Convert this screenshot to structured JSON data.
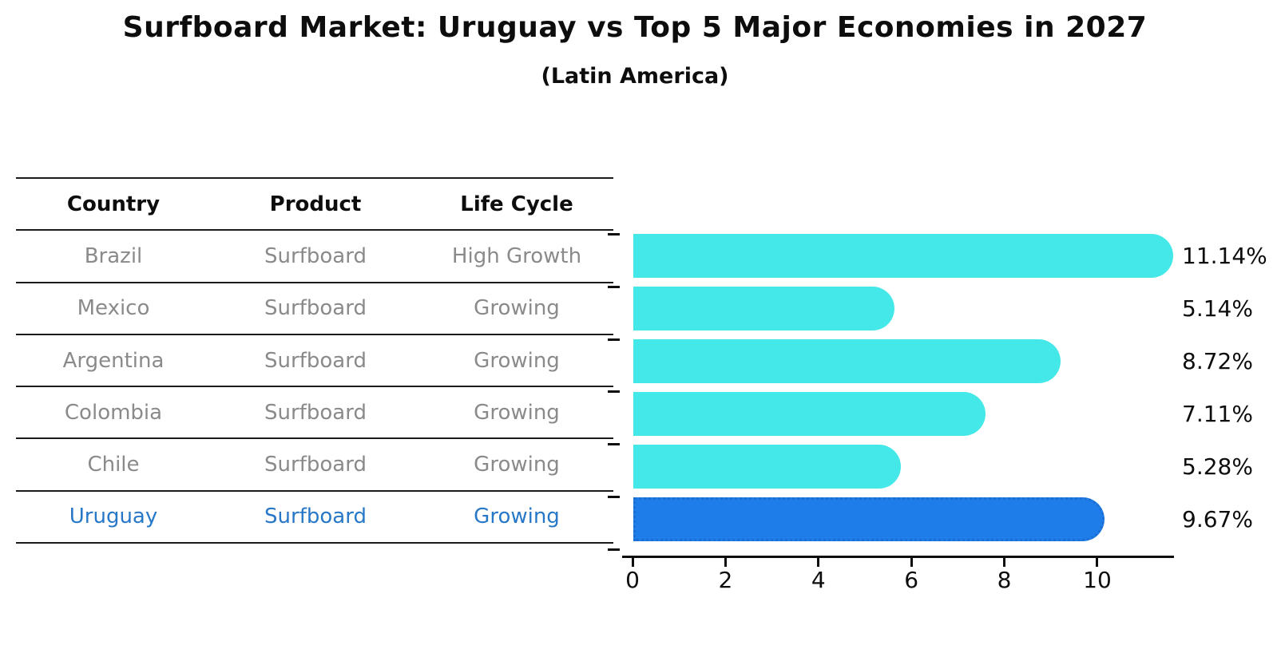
{
  "title": "Surfboard Market: Uruguay vs Top 5 Major Economies in 2027",
  "subtitle": "(Latin America)",
  "table": {
    "headers": [
      "Country",
      "Product",
      "Life Cycle"
    ],
    "rows": [
      {
        "country": "Brazil",
        "product": "Surfboard",
        "life_cycle": "High Growth",
        "highlight": false
      },
      {
        "country": "Mexico",
        "product": "Surfboard",
        "life_cycle": "Growing",
        "highlight": false
      },
      {
        "country": "Argentina",
        "product": "Surfboard",
        "life_cycle": "Growing",
        "highlight": false
      },
      {
        "country": "Colombia",
        "product": "Surfboard",
        "life_cycle": "Growing",
        "highlight": false
      },
      {
        "country": "Chile",
        "product": "Surfboard",
        "life_cycle": "Growing",
        "highlight": false
      },
      {
        "country": "Uruguay",
        "product": "Surfboard",
        "life_cycle": "Growing",
        "highlight": true
      }
    ]
  },
  "chart_data": {
    "type": "bar",
    "orientation": "horizontal",
    "categories": [
      "Brazil",
      "Mexico",
      "Argentina",
      "Colombia",
      "Chile",
      "Uruguay"
    ],
    "values": [
      11.14,
      5.14,
      8.72,
      7.11,
      5.28,
      9.67
    ],
    "value_labels": [
      "11.14%",
      "5.14%",
      "8.72%",
      "7.11%",
      "5.28%",
      "9.67%"
    ],
    "xticks": [
      "0",
      "2",
      "4",
      "6",
      "8",
      "10"
    ],
    "xtick_values": [
      0,
      2,
      4,
      6,
      8,
      10
    ],
    "xlim": [
      0,
      11.65
    ],
    "grid": false,
    "legend": null,
    "bar_color": "#45e8e8",
    "highlight_color": "#1e7de8",
    "highlight_index": 5,
    "highlight_text_color": "#2878c8"
  }
}
